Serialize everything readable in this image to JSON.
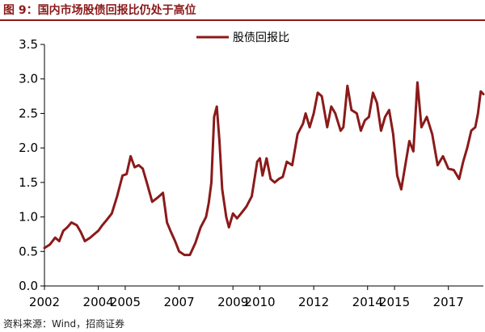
{
  "title": "图 9：国内市场股债回报比仍处于高位",
  "source": "资料来源：Wind，招商证券",
  "colors": {
    "line": "#8b1a1a",
    "title": "#8b1a1a"
  },
  "chart_data": {
    "type": "line",
    "legend": {
      "position": "top-center"
    },
    "grid": false,
    "xlim": [
      2002,
      2018.3
    ],
    "ylim": [
      0,
      3.5
    ],
    "x_ticks": [
      2002,
      2004,
      2005,
      2007,
      2009,
      2010,
      2012,
      2014,
      2015,
      2017
    ],
    "x_tick_labels": [
      "2002",
      "2004",
      "2005",
      "2007",
      "2009",
      "2010",
      "2012",
      "2014",
      "2015",
      "2017"
    ],
    "y_ticks": [
      0,
      0.5,
      1.0,
      1.5,
      2.0,
      2.5,
      3.0,
      3.5
    ],
    "y_tick_labels": [
      "0.0",
      "0.5",
      "1.0",
      "1.5",
      "2.0",
      "2.5",
      "3.0",
      "3.5"
    ],
    "series": [
      {
        "name": "股债回报比",
        "x": [
          2002.0,
          2002.2,
          2002.4,
          2002.55,
          2002.7,
          2002.85,
          2003.0,
          2003.2,
          2003.35,
          2003.5,
          2003.7,
          2003.85,
          2004.0,
          2004.15,
          2004.3,
          2004.5,
          2004.7,
          2004.9,
          2005.05,
          2005.2,
          2005.35,
          2005.5,
          2005.65,
          2005.8,
          2006.0,
          2006.2,
          2006.4,
          2006.55,
          2006.7,
          2006.85,
          2007.0,
          2007.2,
          2007.4,
          2007.6,
          2007.8,
          2008.0,
          2008.1,
          2008.2,
          2008.3,
          2008.4,
          2008.5,
          2008.6,
          2008.75,
          2008.85,
          2009.0,
          2009.15,
          2009.3,
          2009.5,
          2009.7,
          2009.9,
          2010.0,
          2010.1,
          2010.25,
          2010.4,
          2010.55,
          2010.7,
          2010.85,
          2011.0,
          2011.2,
          2011.4,
          2011.6,
          2011.7,
          2011.85,
          2012.0,
          2012.15,
          2012.3,
          2012.5,
          2012.65,
          2012.8,
          2013.0,
          2013.1,
          2013.25,
          2013.4,
          2013.6,
          2013.75,
          2013.9,
          2014.05,
          2014.2,
          2014.35,
          2014.5,
          2014.65,
          2014.8,
          2014.95,
          2015.1,
          2015.25,
          2015.4,
          2015.55,
          2015.7,
          2015.85,
          2016.0,
          2016.2,
          2016.4,
          2016.6,
          2016.8,
          2017.0,
          2017.2,
          2017.4,
          2017.55,
          2017.7,
          2017.85,
          2018.0,
          2018.1,
          2018.2,
          2018.3
        ],
        "y": [
          0.55,
          0.6,
          0.7,
          0.65,
          0.8,
          0.85,
          0.92,
          0.88,
          0.78,
          0.65,
          0.7,
          0.75,
          0.8,
          0.88,
          0.95,
          1.05,
          1.3,
          1.6,
          1.62,
          1.88,
          1.72,
          1.75,
          1.7,
          1.5,
          1.22,
          1.28,
          1.35,
          0.92,
          0.78,
          0.65,
          0.5,
          0.45,
          0.45,
          0.62,
          0.85,
          1.0,
          1.2,
          1.5,
          2.45,
          2.6,
          2.1,
          1.4,
          1.0,
          0.85,
          1.05,
          0.98,
          1.05,
          1.15,
          1.3,
          1.8,
          1.85,
          1.6,
          1.85,
          1.55,
          1.5,
          1.55,
          1.58,
          1.8,
          1.75,
          2.2,
          2.35,
          2.5,
          2.3,
          2.5,
          2.8,
          2.75,
          2.3,
          2.6,
          2.5,
          2.25,
          2.3,
          2.9,
          2.55,
          2.5,
          2.25,
          2.4,
          2.45,
          2.8,
          2.65,
          2.25,
          2.45,
          2.55,
          2.2,
          1.6,
          1.4,
          1.75,
          2.1,
          1.95,
          2.95,
          2.3,
          2.45,
          2.2,
          1.75,
          1.88,
          1.7,
          1.68,
          1.55,
          1.8,
          2.0,
          2.25,
          2.3,
          2.5,
          2.82,
          2.78
        ]
      }
    ]
  }
}
